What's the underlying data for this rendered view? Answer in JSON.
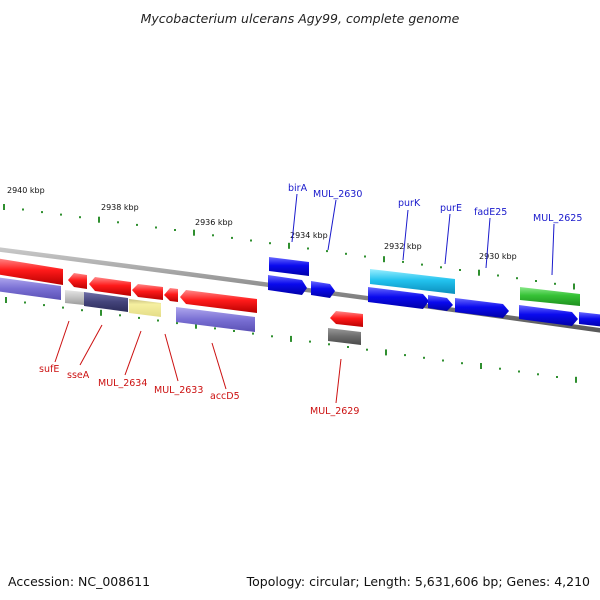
{
  "title": "Mycobacterium ulcerans Agy99, complete genome",
  "footer": {
    "accession": "Accession: NC_008611",
    "summary": "Topology: circular; Length: 5,631,606 bp; Genes: 4,210"
  },
  "colors": {
    "forward_label": "#1a1acc",
    "reverse_label": "#cc1111",
    "backbone": "#8a8a8a",
    "tick": "#2f8f2f"
  },
  "kbp_labels": [
    "2940 kbp",
    "2938 kbp",
    "2936 kbp",
    "2934 kbp",
    "2932 kbp",
    "2930 kbp"
  ],
  "forward_labels": [
    "birA",
    "MUL_2630",
    "purK",
    "purE",
    "fadE25",
    "MUL_2625"
  ],
  "reverse_labels": [
    "sufE",
    "sseA",
    "MUL_2634",
    "MUL_2633",
    "accD5",
    "MUL_2629"
  ]
}
